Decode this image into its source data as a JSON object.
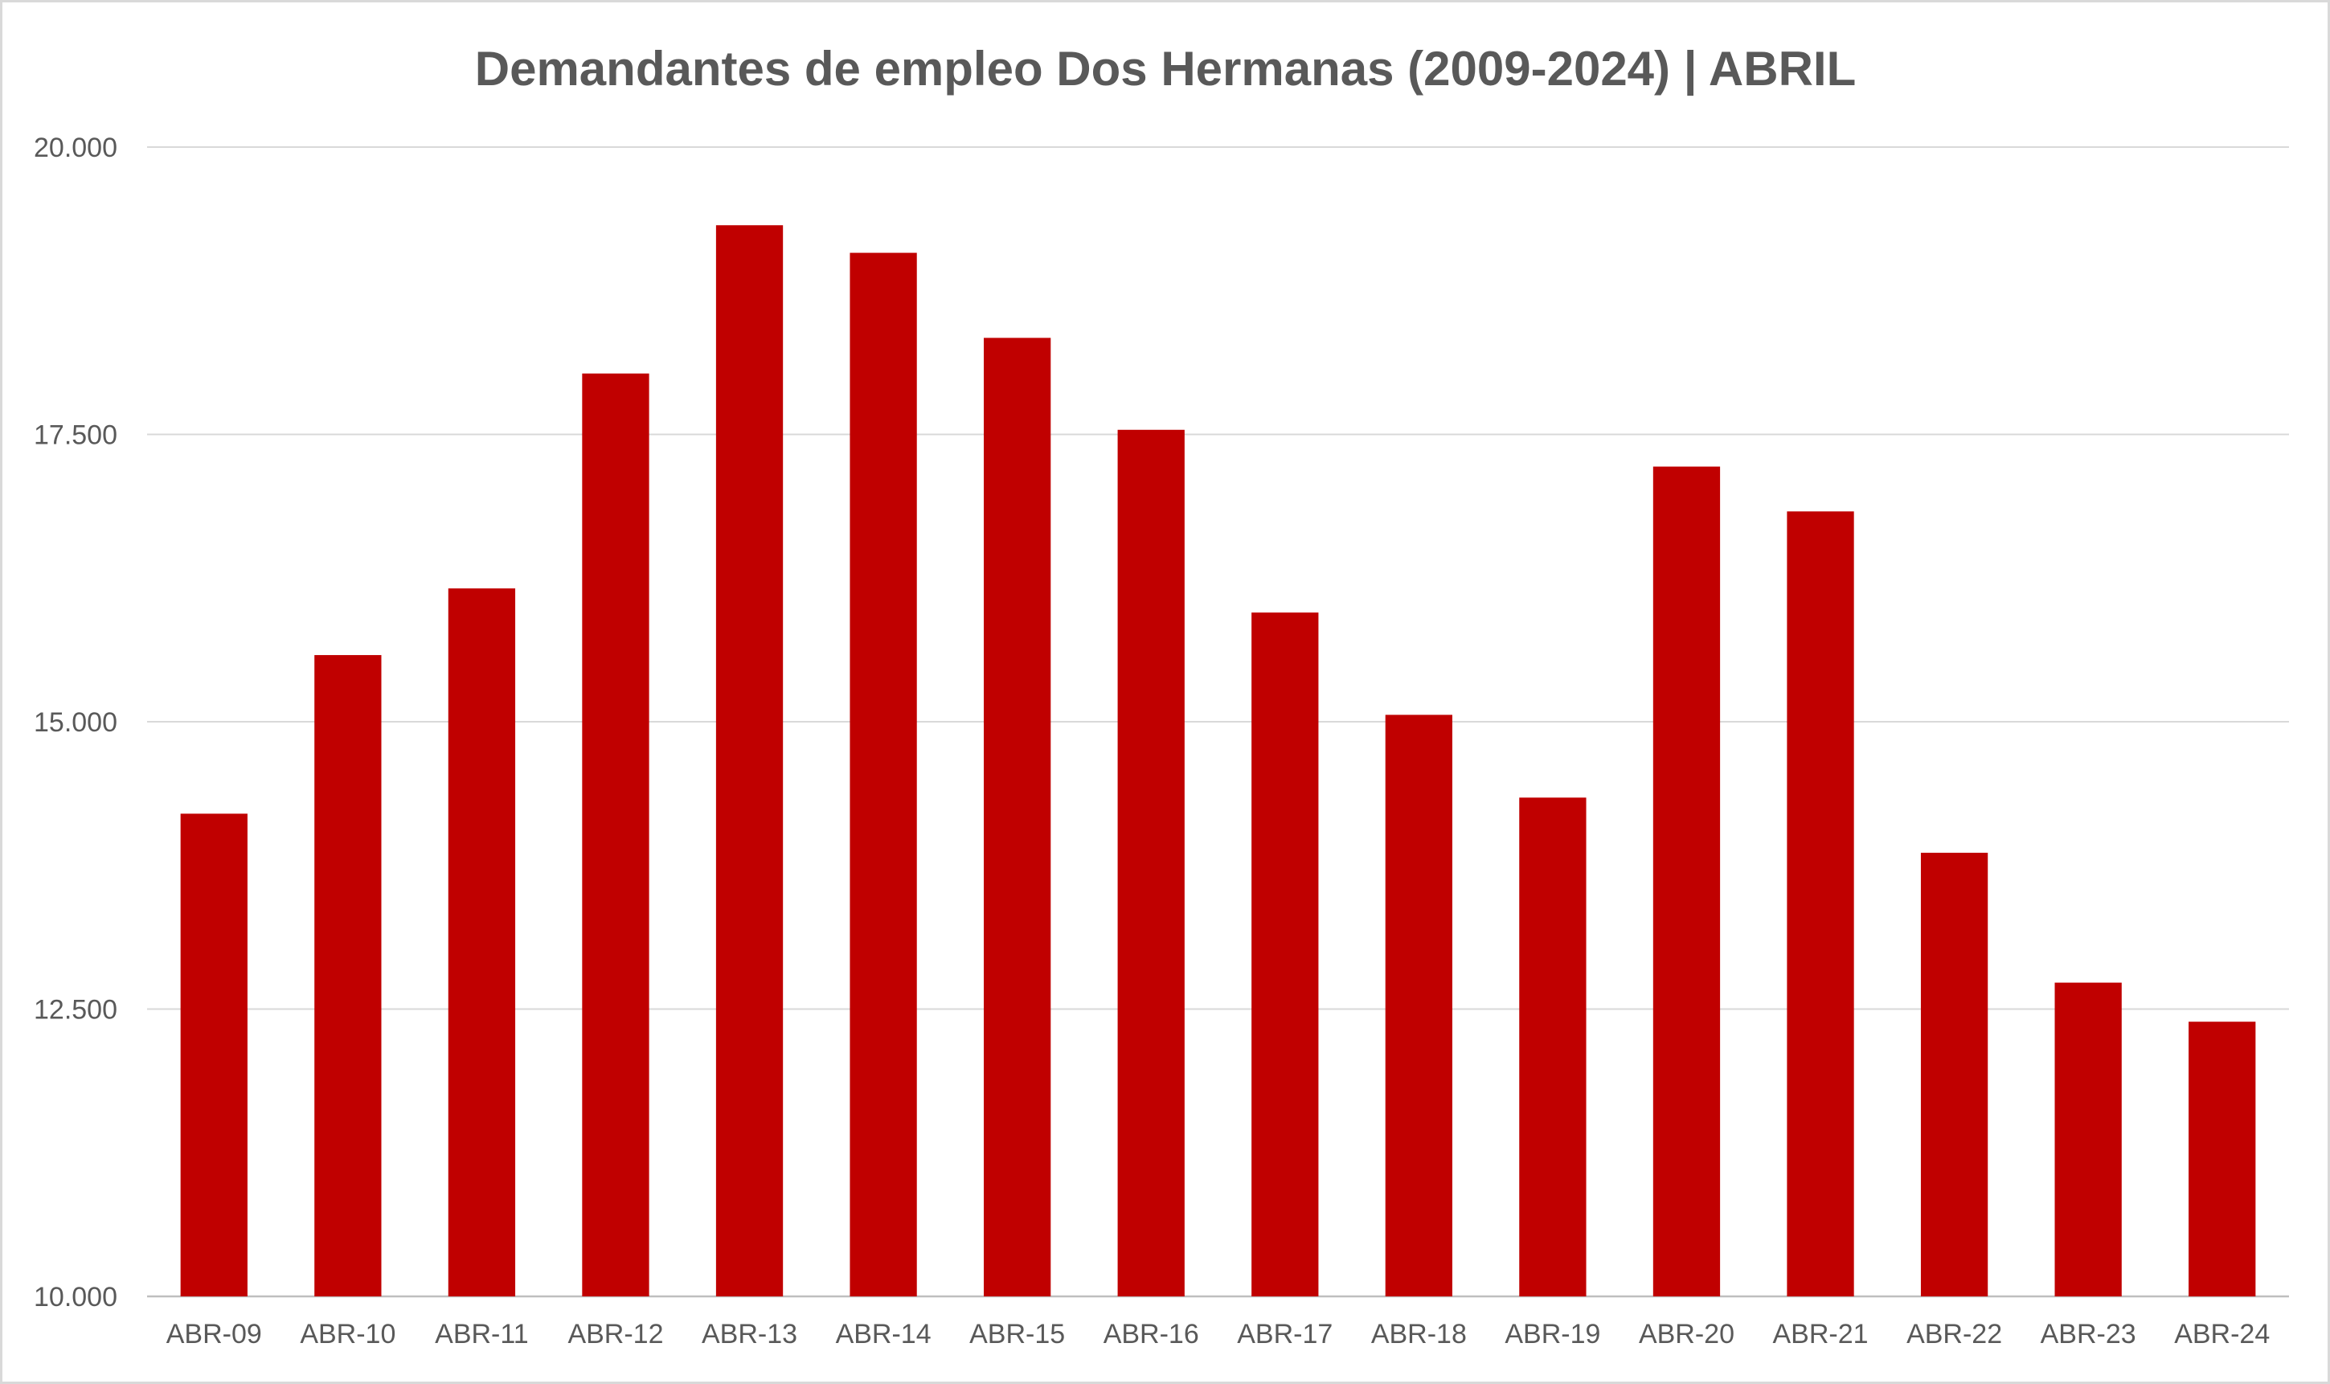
{
  "chart_data": {
    "type": "bar",
    "title": "Demandantes de empleo Dos Hermanas (2009-2024) | ABRIL",
    "xlabel": "",
    "ylabel": "",
    "categories": [
      "ABR-09",
      "ABR-10",
      "ABR-11",
      "ABR-12",
      "ABR-13",
      "ABR-14",
      "ABR-15",
      "ABR-16",
      "ABR-17",
      "ABR-18",
      "ABR-19",
      "ABR-20",
      "ABR-21",
      "ABR-22",
      "ABR-23",
      "ABR-24"
    ],
    "values": [
      14200,
      15580,
      16160,
      18030,
      19320,
      19080,
      18340,
      17540,
      15950,
      15060,
      14340,
      17220,
      16830,
      13860,
      12730,
      12390
    ],
    "ylim": [
      10000,
      20000
    ],
    "yticks": [
      10000,
      12500,
      15000,
      17500,
      20000
    ],
    "ytick_labels": [
      "10.000",
      "12.500",
      "15.000",
      "17.500",
      "20.000"
    ],
    "grid": true,
    "legend": "none",
    "bar_color": "#c00000"
  }
}
